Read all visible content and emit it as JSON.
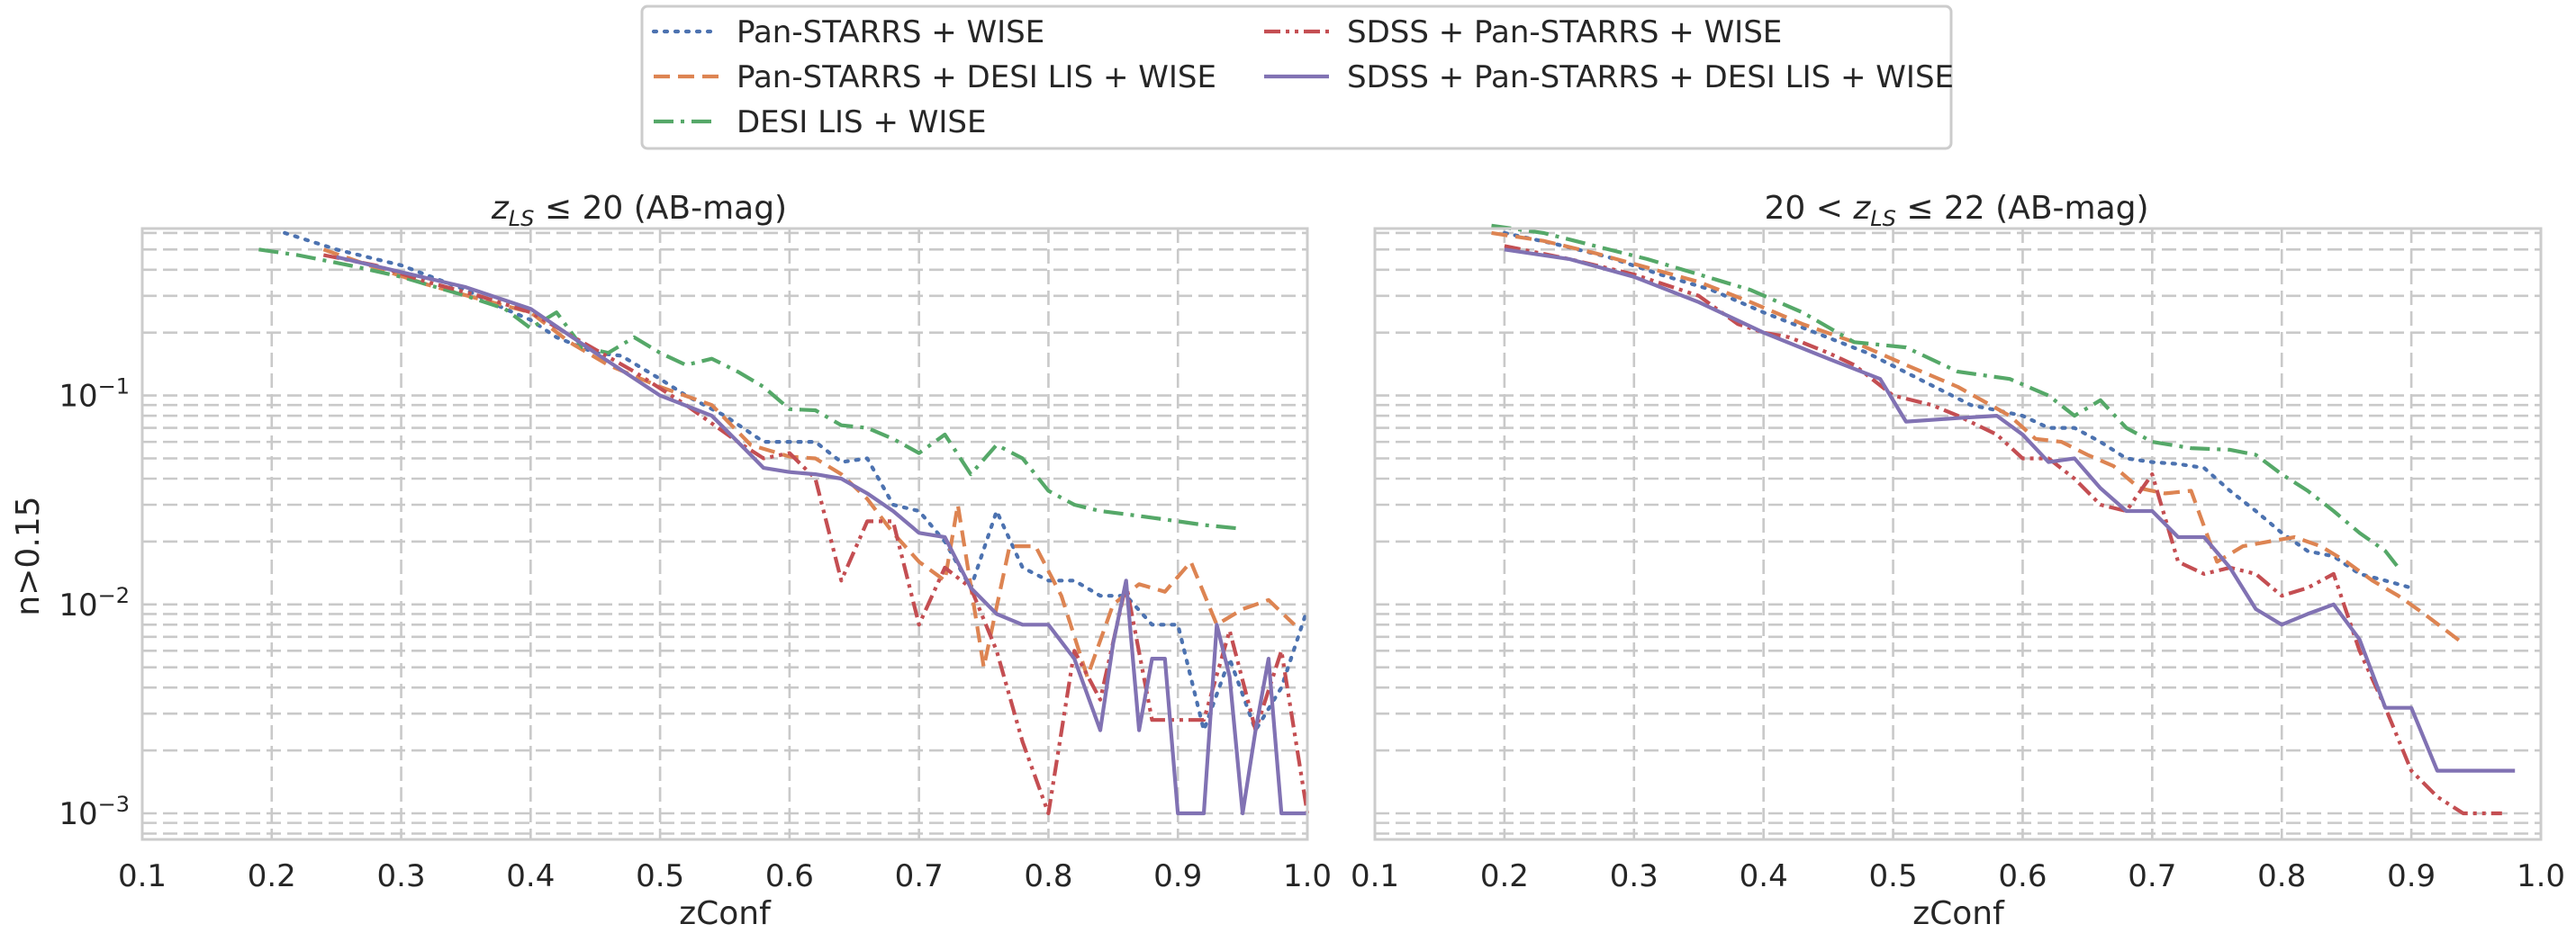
{
  "chart_data": {
    "type": "line",
    "legend": {
      "placement": "top-center",
      "columns": 2
    },
    "y_label": "n>0.15",
    "y_scale": "log",
    "grid": true,
    "series_styles": [
      {
        "name": "Pan-STARRS + WISE",
        "color": "#4c72b0",
        "dash": "dotted"
      },
      {
        "name": "Pan-STARRS + DESI LIS + WISE",
        "color": "#dd8452",
        "dash": "dashed"
      },
      {
        "name": "DESI LIS + WISE",
        "color": "#55a868",
        "dash": "dashdot"
      },
      {
        "name": "SDSS + Pan-STARRS + WISE",
        "color": "#c44e52",
        "dash": "dashdotdot"
      },
      {
        "name": "SDSS + Pan-STARRS + DESI LIS + WISE",
        "color": "#8172b3",
        "dash": "solid"
      }
    ],
    "panels": [
      {
        "title_math": "z",
        "title_sub": "LS",
        "title_text": " ≤ 20 (AB-mag)",
        "title_prefix": "",
        "xlabel": "zConf",
        "xlim": [
          0.1,
          1.0
        ],
        "ylim": [
          0.00075,
          0.63
        ],
        "x_ticks": [
          "0.1",
          "0.2",
          "0.3",
          "0.4",
          "0.5",
          "0.6",
          "0.7",
          "0.8",
          "0.9",
          "1.0"
        ],
        "y_ticks": [
          {
            "base": "10",
            "exp": "−1",
            "value": 0.1
          },
          {
            "base": "10",
            "exp": "−2",
            "value": 0.01
          },
          {
            "base": "10",
            "exp": "−3",
            "value": 0.001
          }
        ],
        "series": [
          {
            "name": "Pan-STARRS + WISE",
            "x": [
              0.21,
              0.25,
              0.3,
              0.35,
              0.38,
              0.4,
              0.42,
              0.45,
              0.47,
              0.5,
              0.52,
              0.55,
              0.58,
              0.6,
              0.62,
              0.64,
              0.66,
              0.68,
              0.7,
              0.72,
              0.74,
              0.76,
              0.78,
              0.8,
              0.82,
              0.84,
              0.86,
              0.88,
              0.9,
              0.92,
              0.94,
              0.96,
              0.98,
              1.0
            ],
            "y": [
              0.6,
              0.5,
              0.42,
              0.32,
              0.26,
              0.23,
              0.19,
              0.16,
              0.155,
              0.12,
              0.1,
              0.08,
              0.06,
              0.06,
              0.06,
              0.048,
              0.05,
              0.03,
              0.028,
              0.02,
              0.012,
              0.028,
              0.015,
              0.013,
              0.013,
              0.011,
              0.011,
              0.008,
              0.008,
              0.0025,
              0.0055,
              0.0025,
              0.004,
              0.0095
            ]
          },
          {
            "name": "Pan-STARRS + DESI LIS + WISE",
            "x": [
              0.24,
              0.28,
              0.32,
              0.36,
              0.4,
              0.43,
              0.46,
              0.5,
              0.54,
              0.57,
              0.6,
              0.62,
              0.64,
              0.66,
              0.68,
              0.7,
              0.72,
              0.73,
              0.75,
              0.77,
              0.79,
              0.81,
              0.83,
              0.85,
              0.87,
              0.89,
              0.91,
              0.93,
              0.95,
              0.97,
              0.99
            ],
            "y": [
              0.5,
              0.41,
              0.34,
              0.29,
              0.25,
              0.18,
              0.14,
              0.11,
              0.09,
              0.058,
              0.051,
              0.05,
              0.042,
              0.032,
              0.022,
              0.016,
              0.013,
              0.03,
              0.005,
              0.019,
              0.019,
              0.011,
              0.0045,
              0.01,
              0.0125,
              0.0115,
              0.016,
              0.008,
              0.0095,
              0.0105,
              0.008
            ]
          },
          {
            "name": "DESI LIS + WISE",
            "x": [
              0.19,
              0.22,
              0.26,
              0.3,
              0.35,
              0.38,
              0.4,
              0.42,
              0.44,
              0.46,
              0.48,
              0.5,
              0.52,
              0.54,
              0.56,
              0.58,
              0.6,
              0.62,
              0.64,
              0.66,
              0.68,
              0.7,
              0.72,
              0.74,
              0.76,
              0.78,
              0.8,
              0.82,
              0.84,
              0.86,
              0.88,
              0.9,
              0.92,
              0.95
            ],
            "y": [
              0.5,
              0.47,
              0.42,
              0.37,
              0.3,
              0.26,
              0.21,
              0.25,
              0.17,
              0.16,
              0.19,
              0.16,
              0.14,
              0.15,
              0.13,
              0.11,
              0.086,
              0.085,
              0.072,
              0.07,
              0.062,
              0.053,
              0.065,
              0.042,
              0.058,
              0.05,
              0.035,
              0.03,
              0.028,
              0.027,
              0.026,
              0.025,
              0.024,
              0.023
            ]
          },
          {
            "name": "SDSS + Pan-STARRS + WISE",
            "x": [
              0.24,
              0.28,
              0.32,
              0.36,
              0.4,
              0.44,
              0.48,
              0.52,
              0.56,
              0.58,
              0.6,
              0.62,
              0.64,
              0.66,
              0.68,
              0.7,
              0.72,
              0.74,
              0.76,
              0.78,
              0.8,
              0.82,
              0.84,
              0.86,
              0.88,
              0.9,
              0.92,
              0.94,
              0.96,
              0.98,
              1.0
            ],
            "y": [
              0.47,
              0.42,
              0.35,
              0.3,
              0.25,
              0.18,
              0.13,
              0.09,
              0.06,
              0.05,
              0.053,
              0.04,
              0.013,
              0.025,
              0.025,
              0.008,
              0.015,
              0.012,
              0.006,
              0.0022,
              0.001,
              0.006,
              0.0035,
              0.0125,
              0.0028,
              0.0028,
              0.0028,
              0.0075,
              0.0025,
              0.006,
              0.001
            ]
          },
          {
            "name": "SDSS + Pan-STARRS + DESI LIS + WISE",
            "x": [
              0.25,
              0.3,
              0.35,
              0.4,
              0.45,
              0.5,
              0.54,
              0.56,
              0.58,
              0.6,
              0.62,
              0.64,
              0.66,
              0.68,
              0.7,
              0.72,
              0.74,
              0.76,
              0.78,
              0.8,
              0.82,
              0.84,
              0.85,
              0.86,
              0.87,
              0.88,
              0.89,
              0.9,
              0.91,
              0.92,
              0.93,
              0.94,
              0.95,
              0.96,
              0.97,
              0.98,
              0.99,
              1.0
            ],
            "y": [
              0.46,
              0.39,
              0.33,
              0.26,
              0.16,
              0.1,
              0.08,
              0.06,
              0.045,
              0.043,
              0.042,
              0.04,
              0.034,
              0.028,
              0.022,
              0.021,
              0.012,
              0.009,
              0.008,
              0.008,
              0.0055,
              0.0025,
              0.0065,
              0.013,
              0.0025,
              0.0055,
              0.0055,
              0.001,
              0.001,
              0.001,
              0.008,
              0.0045,
              0.001,
              0.0025,
              0.0055,
              0.001,
              0.001,
              0.001
            ]
          }
        ]
      },
      {
        "title_prefix": "20 < ",
        "title_math": "z",
        "title_sub": "LS",
        "title_text": " ≤ 22 (AB-mag)",
        "xlabel": "zConf",
        "xlim": [
          0.1,
          1.0
        ],
        "ylim": [
          0.00075,
          0.63
        ],
        "x_ticks": [
          "0.1",
          "0.2",
          "0.3",
          "0.4",
          "0.5",
          "0.6",
          "0.7",
          "0.8",
          "0.9",
          "1.0"
        ],
        "series": [
          {
            "name": "Pan-STARRS + WISE",
            "x": [
              0.2,
              0.24,
              0.28,
              0.32,
              0.36,
              0.4,
              0.44,
              0.48,
              0.52,
              0.56,
              0.58,
              0.6,
              0.62,
              0.64,
              0.66,
              0.68,
              0.7,
              0.72,
              0.74,
              0.76,
              0.78,
              0.8,
              0.82,
              0.84,
              0.86,
              0.88,
              0.9
            ],
            "y": [
              0.6,
              0.53,
              0.46,
              0.38,
              0.32,
              0.25,
              0.2,
              0.16,
              0.12,
              0.09,
              0.085,
              0.08,
              0.07,
              0.07,
              0.06,
              0.05,
              0.048,
              0.047,
              0.045,
              0.035,
              0.028,
              0.022,
              0.018,
              0.017,
              0.014,
              0.013,
              0.012
            ]
          },
          {
            "name": "Pan-STARRS + DESI LIS + WISE",
            "x": [
              0.19,
              0.23,
              0.27,
              0.31,
              0.35,
              0.39,
              0.43,
              0.47,
              0.51,
              0.55,
              0.59,
              0.61,
              0.63,
              0.65,
              0.67,
              0.69,
              0.71,
              0.73,
              0.75,
              0.77,
              0.79,
              0.81,
              0.83,
              0.85,
              0.87,
              0.89,
              0.91,
              0.94
            ],
            "y": [
              0.6,
              0.55,
              0.48,
              0.41,
              0.35,
              0.28,
              0.22,
              0.18,
              0.14,
              0.11,
              0.08,
              0.062,
              0.06,
              0.052,
              0.046,
              0.036,
              0.034,
              0.035,
              0.016,
              0.019,
              0.02,
              0.021,
              0.019,
              0.016,
              0.013,
              0.011,
              0.009,
              0.0065
            ]
          },
          {
            "name": "DESI LIS + WISE",
            "x": [
              0.19,
              0.23,
              0.27,
              0.31,
              0.35,
              0.39,
              0.43,
              0.47,
              0.51,
              0.55,
              0.59,
              0.62,
              0.64,
              0.66,
              0.68,
              0.7,
              0.73,
              0.76,
              0.78,
              0.8,
              0.82,
              0.84,
              0.86,
              0.88,
              0.89
            ],
            "y": [
              0.65,
              0.6,
              0.52,
              0.45,
              0.38,
              0.32,
              0.25,
              0.18,
              0.17,
              0.13,
              0.12,
              0.1,
              0.08,
              0.095,
              0.07,
              0.06,
              0.056,
              0.055,
              0.052,
              0.042,
              0.035,
              0.028,
              0.022,
              0.018,
              0.015
            ]
          },
          {
            "name": "SDSS + Pan-STARRS + WISE",
            "x": [
              0.2,
              0.25,
              0.3,
              0.35,
              0.38,
              0.4,
              0.42,
              0.45,
              0.47,
              0.5,
              0.53,
              0.55,
              0.58,
              0.6,
              0.62,
              0.64,
              0.66,
              0.68,
              0.7,
              0.72,
              0.74,
              0.76,
              0.78,
              0.8,
              0.82,
              0.84,
              0.86,
              0.88,
              0.9,
              0.92,
              0.94,
              0.96,
              0.97
            ],
            "y": [
              0.52,
              0.45,
              0.38,
              0.3,
              0.22,
              0.2,
              0.19,
              0.16,
              0.14,
              0.1,
              0.09,
              0.08,
              0.065,
              0.05,
              0.05,
              0.04,
              0.03,
              0.028,
              0.042,
              0.016,
              0.014,
              0.015,
              0.014,
              0.011,
              0.012,
              0.014,
              0.006,
              0.0032,
              0.0016,
              0.0012,
              0.001,
              0.001,
              0.001
            ]
          },
          {
            "name": "SDSS + Pan-STARRS + DESI LIS + WISE",
            "x": [
              0.2,
              0.25,
              0.3,
              0.35,
              0.4,
              0.45,
              0.49,
              0.51,
              0.55,
              0.58,
              0.6,
              0.62,
              0.64,
              0.66,
              0.68,
              0.7,
              0.72,
              0.74,
              0.76,
              0.78,
              0.8,
              0.82,
              0.84,
              0.86,
              0.88,
              0.9,
              0.92,
              0.94,
              0.96,
              0.98
            ],
            "y": [
              0.5,
              0.45,
              0.37,
              0.28,
              0.2,
              0.15,
              0.12,
              0.075,
              0.078,
              0.08,
              0.065,
              0.048,
              0.05,
              0.036,
              0.028,
              0.028,
              0.021,
              0.021,
              0.015,
              0.0095,
              0.008,
              0.009,
              0.01,
              0.0068,
              0.0032,
              0.0032,
              0.0016,
              0.0016,
              0.0016,
              0.0016
            ]
          }
        ]
      }
    ]
  }
}
